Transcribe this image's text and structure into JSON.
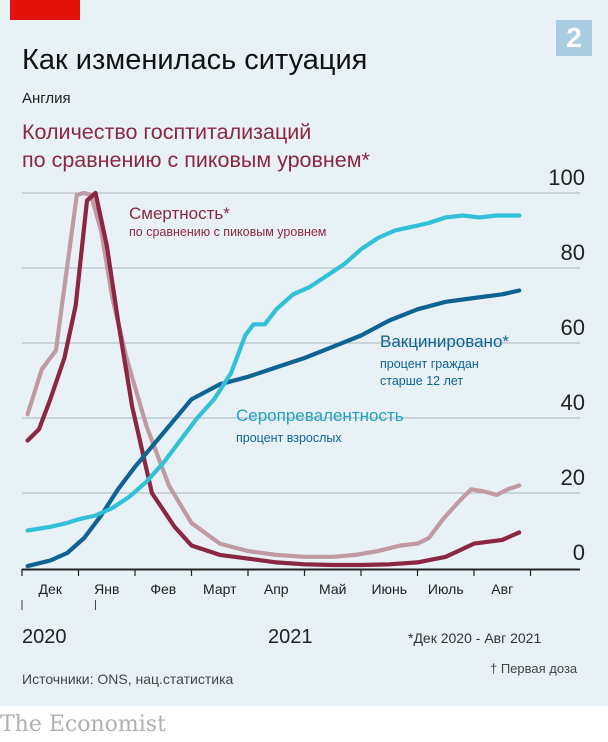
{
  "header": {
    "badge": "2",
    "title": "Как изменилась ситуация",
    "subtitle": "Англия",
    "hosp_label_line1": "Количество госптитализаций",
    "hosp_label_line2": "по сравнению с пиковым уровнем*"
  },
  "colors": {
    "hospitalisations": "#c09aa3",
    "deaths": "#8b2742",
    "vaccinated": "#0f6393",
    "seroprevalence": "#30c0d8",
    "grid": "#a8b6bf",
    "brand_red": "#e3120b"
  },
  "chart_data": {
    "type": "line",
    "title": "Количество госптитализаций по сравнению с пиковым уровнем*",
    "region": "Англия",
    "x_unit": "months since start of Dec 2020",
    "xlim": [
      0,
      8.85
    ],
    "ylim": [
      0,
      100
    ],
    "y_ticks": [
      "0",
      "20",
      "40",
      "60",
      "80",
      "100"
    ],
    "x_ticks": [
      "Дек",
      "Янв",
      "Фев",
      "Март",
      "Апр",
      "Май",
      "Июнь",
      "Июль",
      "Авг"
    ],
    "year_labels": [
      "2020",
      "2021"
    ],
    "annotations": {
      "deaths_title": "Смертность*",
      "deaths_sub": "по сравнению с пиковым уровнем",
      "vacc_title": "Вакцинировано*",
      "vacc_sub1": "процент граждан",
      "vacc_sub2": "старше 12 лет",
      "sero_title": "Серопревалентность",
      "sero_sub": "процент взрослых"
    },
    "series": [
      {
        "name": "Госпитализации",
        "key": "hospitalisations",
        "x": [
          0.1,
          0.35,
          0.6,
          0.85,
          0.97,
          1.1,
          1.22,
          1.4,
          1.6,
          1.85,
          2.2,
          2.6,
          3.0,
          3.5,
          4.0,
          4.5,
          5.0,
          5.5,
          5.9,
          6.3,
          6.7,
          7.0,
          7.2,
          7.45,
          7.75,
          7.95,
          8.15,
          8.4,
          8.6,
          8.8
        ],
        "values": [
          41,
          53,
          58,
          86,
          99.5,
          100,
          99.5,
          90,
          72,
          56,
          38,
          22,
          12,
          6.5,
          4.5,
          3.5,
          3,
          3,
          3.5,
          4.5,
          6,
          6.5,
          8,
          13,
          18,
          21,
          20.5,
          19.5,
          21,
          22
        ]
      },
      {
        "name": "Смертность*",
        "key": "deaths",
        "x": [
          0.1,
          0.3,
          0.5,
          0.75,
          0.95,
          1.15,
          1.3,
          1.5,
          1.7,
          1.95,
          2.3,
          2.7,
          3.0,
          3.5,
          4.0,
          4.5,
          5.0,
          5.5,
          6.0,
          6.5,
          7.0,
          7.5,
          8.0,
          8.5,
          8.8
        ],
        "values": [
          34,
          37,
          45,
          56,
          70,
          98,
          100,
          86,
          66,
          43,
          20,
          11,
          6,
          3.5,
          2.5,
          1.5,
          1,
          0.8,
          0.8,
          1,
          1.5,
          3,
          6.5,
          7.5,
          9.5
        ]
      },
      {
        "name": "Вакцинировано*",
        "key": "vaccinated",
        "x": [
          0.1,
          0.5,
          0.8,
          1.1,
          1.4,
          1.7,
          2.0,
          2.5,
          3.0,
          3.5,
          4.0,
          4.5,
          5.0,
          5.5,
          6.0,
          6.5,
          7.0,
          7.5,
          8.0,
          8.5,
          8.8
        ],
        "values": [
          0.5,
          2,
          4,
          8,
          14,
          21,
          27,
          36,
          45,
          49,
          51,
          53.5,
          56,
          59,
          62,
          66,
          69,
          71,
          72,
          73,
          74
        ]
      },
      {
        "name": "Серопревалентность",
        "key": "seroprevalence",
        "x": [
          0.1,
          0.5,
          0.8,
          1.0,
          1.3,
          1.6,
          1.9,
          2.2,
          2.5,
          2.8,
          3.1,
          3.4,
          3.7,
          3.95,
          4.1,
          4.3,
          4.5,
          4.8,
          5.1,
          5.4,
          5.7,
          6.0,
          6.3,
          6.6,
          6.9,
          7.2,
          7.5,
          7.8,
          8.1,
          8.4,
          8.8
        ],
        "values": [
          10,
          11,
          12,
          13,
          14,
          16,
          19,
          23,
          28,
          34,
          40,
          45,
          52,
          62,
          65,
          65,
          69,
          73,
          75,
          78,
          81,
          85,
          88,
          90,
          91,
          92,
          93.5,
          94,
          93.5,
          94,
          94
        ]
      }
    ]
  },
  "footer": {
    "period": "*Дек 2020 - Авг 2021",
    "note": "† Первая доза",
    "sources": "Источники: ONS, нац.статистика",
    "brand": "The Economist"
  }
}
